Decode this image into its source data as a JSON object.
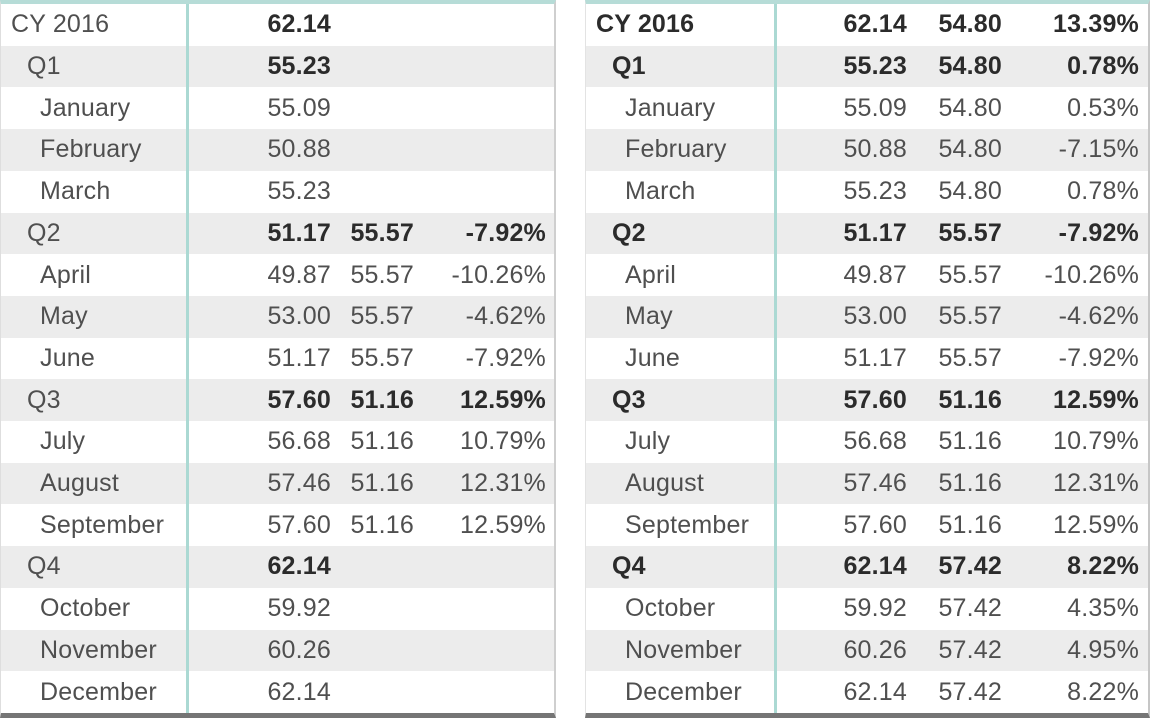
{
  "visual_type": "matrix-table-pair",
  "colors": {
    "separator_teal": "#ABD9D3",
    "top_border_teal": "#B6DCD7",
    "stripe_gray": "#ECECEC",
    "bottom_border_gray": "#757575",
    "text_regular": "#4F4F4F",
    "text_bold": "#2B2B2B"
  },
  "chart_data": [
    {
      "type": "table",
      "name": "matrix-left",
      "bold_labels": false,
      "grid": "alternating-row-stripes",
      "rows": [
        {
          "label": "CY 2016",
          "level": 0,
          "total": true,
          "values": [
            "62.14",
            "",
            ""
          ]
        },
        {
          "label": "Q1",
          "level": 1,
          "total": true,
          "values": [
            "55.23",
            "",
            ""
          ]
        },
        {
          "label": "January",
          "level": 2,
          "total": false,
          "values": [
            "55.09",
            "",
            ""
          ]
        },
        {
          "label": "February",
          "level": 2,
          "total": false,
          "values": [
            "50.88",
            "",
            ""
          ]
        },
        {
          "label": "March",
          "level": 2,
          "total": false,
          "values": [
            "55.23",
            "",
            ""
          ]
        },
        {
          "label": "Q2",
          "level": 1,
          "total": true,
          "values": [
            "51.17",
            "55.57",
            "-7.92%"
          ]
        },
        {
          "label": "April",
          "level": 2,
          "total": false,
          "values": [
            "49.87",
            "55.57",
            "-10.26%"
          ]
        },
        {
          "label": "May",
          "level": 2,
          "total": false,
          "values": [
            "53.00",
            "55.57",
            "-4.62%"
          ]
        },
        {
          "label": "June",
          "level": 2,
          "total": false,
          "values": [
            "51.17",
            "55.57",
            "-7.92%"
          ]
        },
        {
          "label": "Q3",
          "level": 1,
          "total": true,
          "values": [
            "57.60",
            "51.16",
            "12.59%"
          ]
        },
        {
          "label": "July",
          "level": 2,
          "total": false,
          "values": [
            "56.68",
            "51.16",
            "10.79%"
          ]
        },
        {
          "label": "August",
          "level": 2,
          "total": false,
          "values": [
            "57.46",
            "51.16",
            "12.31%"
          ]
        },
        {
          "label": "September",
          "level": 2,
          "total": false,
          "values": [
            "57.60",
            "51.16",
            "12.59%"
          ]
        },
        {
          "label": "Q4",
          "level": 1,
          "total": true,
          "values": [
            "62.14",
            "",
            ""
          ]
        },
        {
          "label": "October",
          "level": 2,
          "total": false,
          "values": [
            "59.92",
            "",
            ""
          ]
        },
        {
          "label": "November",
          "level": 2,
          "total": false,
          "values": [
            "60.26",
            "",
            ""
          ]
        },
        {
          "label": "December",
          "level": 2,
          "total": false,
          "values": [
            "62.14",
            "",
            ""
          ]
        }
      ]
    },
    {
      "type": "table",
      "name": "matrix-right",
      "bold_labels": true,
      "grid": "alternating-row-stripes",
      "rows": [
        {
          "label": "CY 2016",
          "level": 0,
          "total": true,
          "values": [
            "62.14",
            "54.80",
            "13.39%"
          ]
        },
        {
          "label": "Q1",
          "level": 1,
          "total": true,
          "values": [
            "55.23",
            "54.80",
            "0.78%"
          ]
        },
        {
          "label": "January",
          "level": 2,
          "total": false,
          "values": [
            "55.09",
            "54.80",
            "0.53%"
          ]
        },
        {
          "label": "February",
          "level": 2,
          "total": false,
          "values": [
            "50.88",
            "54.80",
            "-7.15%"
          ]
        },
        {
          "label": "March",
          "level": 2,
          "total": false,
          "values": [
            "55.23",
            "54.80",
            "0.78%"
          ]
        },
        {
          "label": "Q2",
          "level": 1,
          "total": true,
          "values": [
            "51.17",
            "55.57",
            "-7.92%"
          ]
        },
        {
          "label": "April",
          "level": 2,
          "total": false,
          "values": [
            "49.87",
            "55.57",
            "-10.26%"
          ]
        },
        {
          "label": "May",
          "level": 2,
          "total": false,
          "values": [
            "53.00",
            "55.57",
            "-4.62%"
          ]
        },
        {
          "label": "June",
          "level": 2,
          "total": false,
          "values": [
            "51.17",
            "55.57",
            "-7.92%"
          ]
        },
        {
          "label": "Q3",
          "level": 1,
          "total": true,
          "values": [
            "57.60",
            "51.16",
            "12.59%"
          ]
        },
        {
          "label": "July",
          "level": 2,
          "total": false,
          "values": [
            "56.68",
            "51.16",
            "10.79%"
          ]
        },
        {
          "label": "August",
          "level": 2,
          "total": false,
          "values": [
            "57.46",
            "51.16",
            "12.31%"
          ]
        },
        {
          "label": "September",
          "level": 2,
          "total": false,
          "values": [
            "57.60",
            "51.16",
            "12.59%"
          ]
        },
        {
          "label": "Q4",
          "level": 1,
          "total": true,
          "values": [
            "62.14",
            "57.42",
            "8.22%"
          ]
        },
        {
          "label": "October",
          "level": 2,
          "total": false,
          "values": [
            "59.92",
            "57.42",
            "4.35%"
          ]
        },
        {
          "label": "November",
          "level": 2,
          "total": false,
          "values": [
            "60.26",
            "57.42",
            "4.95%"
          ]
        },
        {
          "label": "December",
          "level": 2,
          "total": false,
          "values": [
            "62.14",
            "57.42",
            "8.22%"
          ]
        }
      ]
    }
  ]
}
